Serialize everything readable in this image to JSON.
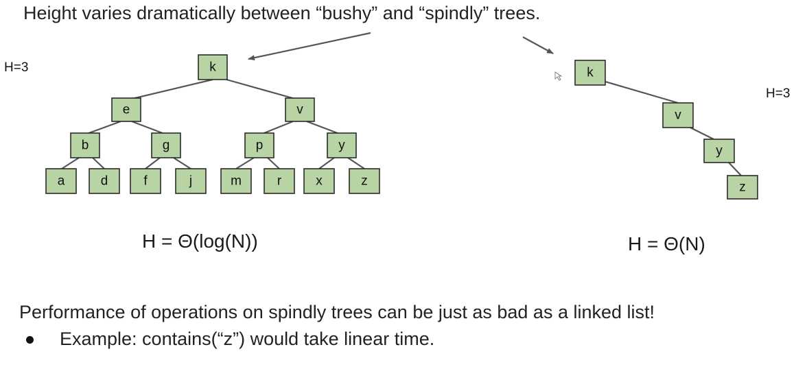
{
  "heading": "Height varies dramatically between “bushy” and “spindly” trees.",
  "bushy_tree": {
    "height_label": "H=3",
    "formula": "H = Θ(log(N))",
    "nodes": [
      "k",
      "e",
      "v",
      "b",
      "g",
      "p",
      "y",
      "a",
      "d",
      "f",
      "j",
      "m",
      "r",
      "x",
      "z"
    ]
  },
  "spindly_tree": {
    "height_label": "H=3",
    "formula": "H = Θ(N)",
    "nodes": [
      "k",
      "v",
      "y",
      "z"
    ]
  },
  "performance_note": "Performance of operations on spindly trees can be just as bad as a linked list!",
  "bullets": [
    "Example: contains(“z”) would take linear time."
  ],
  "colors": {
    "node_fill": "#b8d4a4",
    "node_stroke": "#2b2b2b",
    "edge": "#555555"
  }
}
